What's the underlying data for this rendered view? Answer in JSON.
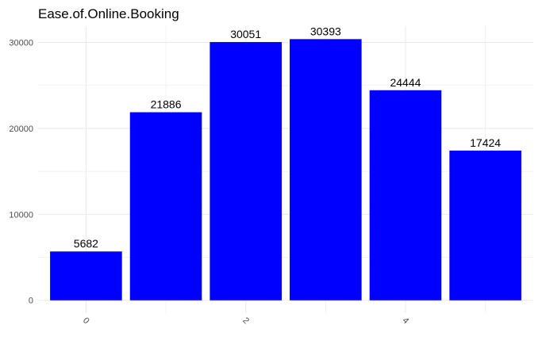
{
  "chart_data": {
    "type": "bar",
    "title": "Ease.of.Online.Booking",
    "xlabel": "",
    "ylabel": "",
    "categories": [
      0,
      1,
      2,
      3,
      4,
      5
    ],
    "values": [
      5682,
      21886,
      30051,
      30393,
      24444,
      17424
    ],
    "data_labels": [
      "5682",
      "21886",
      "30051",
      "30393",
      "24444",
      "17424"
    ],
    "x_tick_labels": [
      {
        "value": 0,
        "label": "0"
      },
      {
        "value": 2,
        "label": "2"
      },
      {
        "value": 4,
        "label": "4"
      }
    ],
    "x_minor_ticks": [
      1,
      3,
      5
    ],
    "x_tick_rotation_deg": 45,
    "y_ticks": [
      {
        "value": 0,
        "label": "0"
      },
      {
        "value": 10000,
        "label": "10000"
      },
      {
        "value": 20000,
        "label": "20000"
      },
      {
        "value": 30000,
        "label": "30000"
      }
    ],
    "y_minor_ticks": [
      5000,
      15000,
      25000
    ],
    "ylim": [
      -1500,
      31900
    ],
    "xlim": [
      -0.6,
      5.6
    ],
    "grid": true,
    "legend": "none",
    "colors": {
      "bar": "#0000ff",
      "grid": "#ebebeb",
      "background": "#ffffff"
    }
  }
}
